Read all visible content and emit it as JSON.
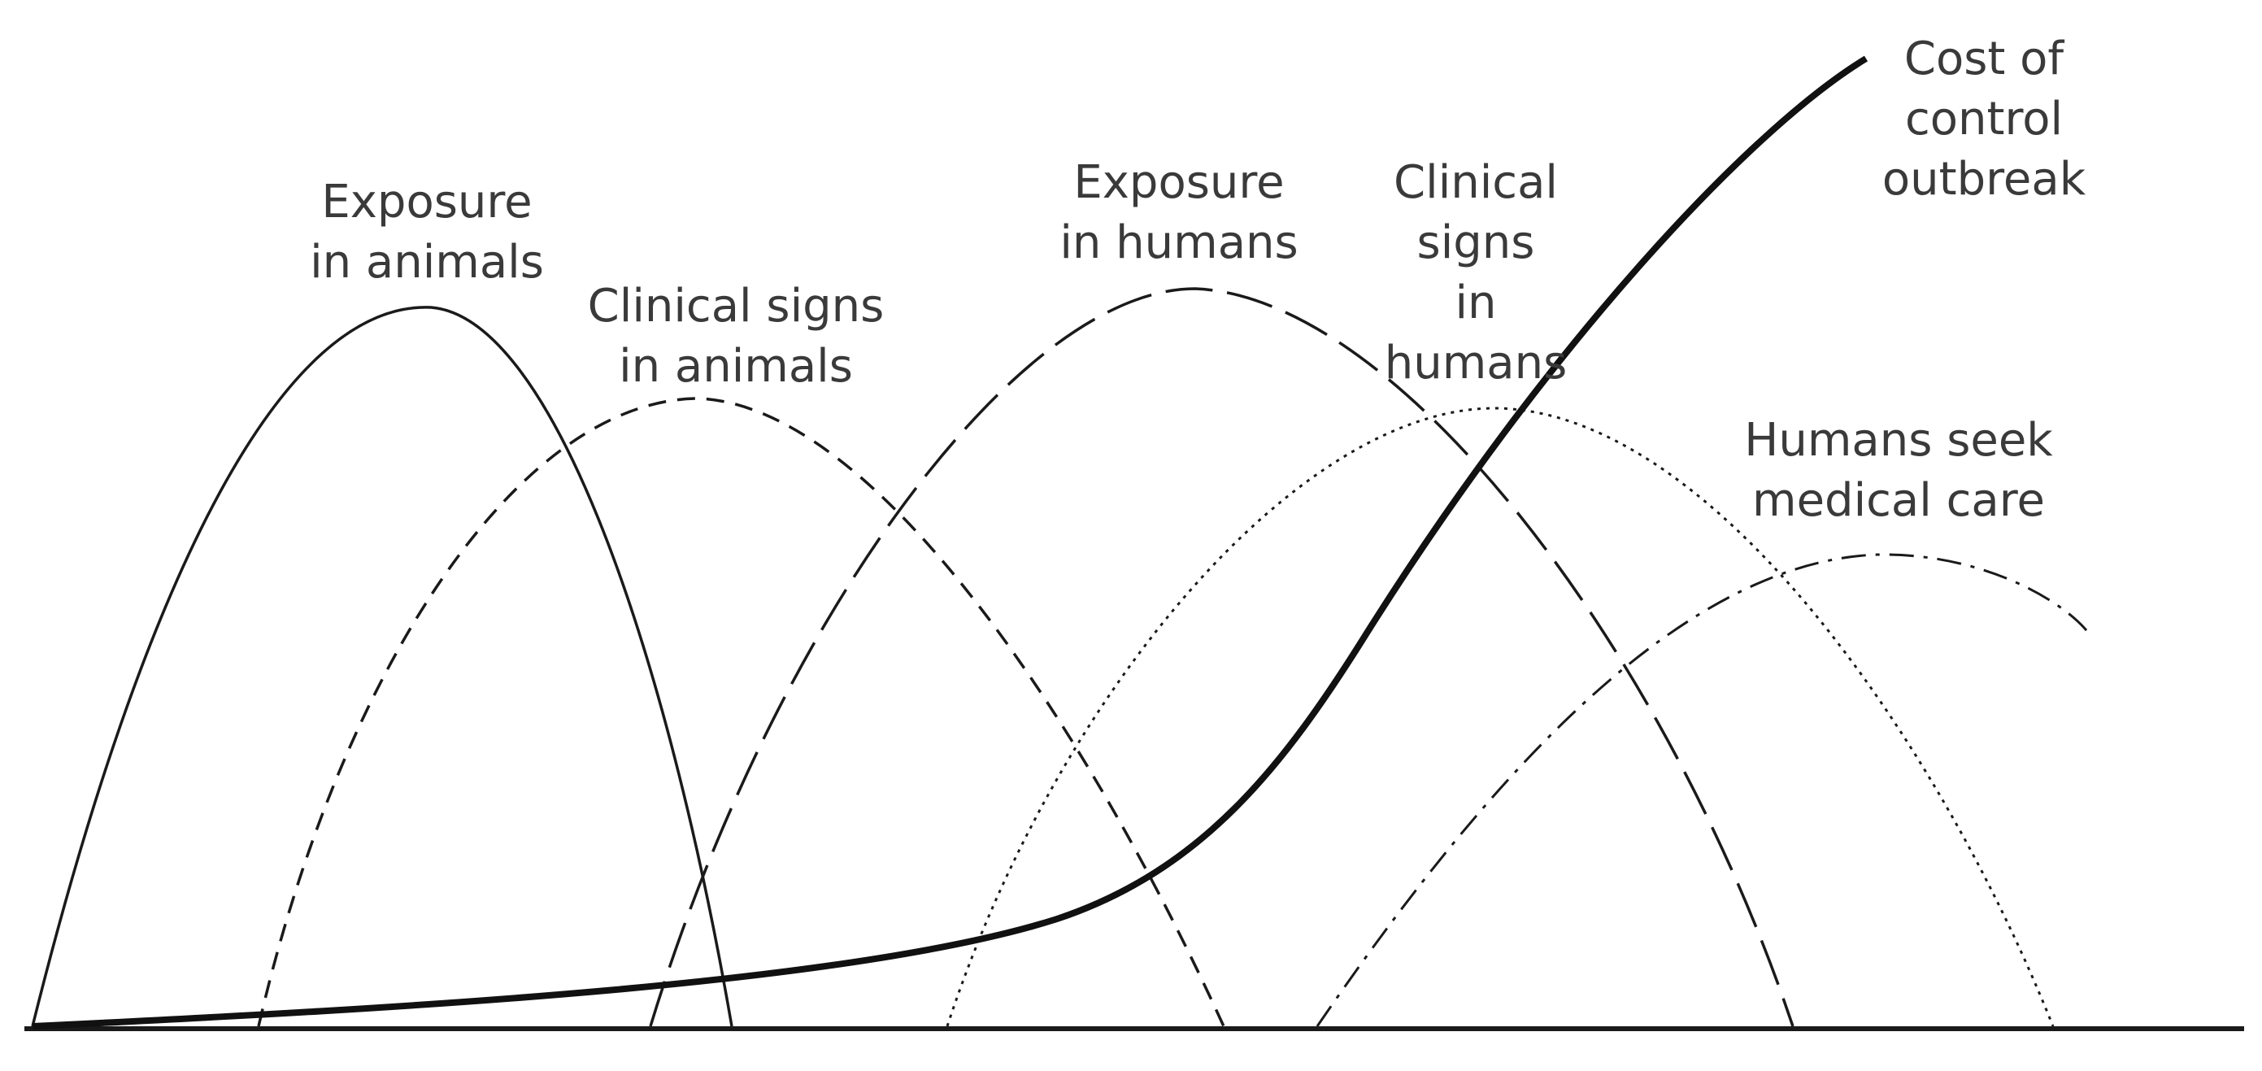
{
  "labels": {
    "exposure_animals": [
      "Exposure",
      "in animals"
    ],
    "clinical_animals": [
      "Clinical signs",
      "in animals"
    ],
    "exposure_humans": [
      "Exposure",
      "in humans"
    ],
    "clinical_humans": [
      "Clinical",
      "signs",
      "in",
      "humans"
    ],
    "seek_care": [
      "Humans seek",
      "medical care"
    ],
    "cost": [
      "Cost of",
      "control",
      "outbreak"
    ]
  },
  "colors": {
    "background": "#ffffff",
    "stroke": "#1a1a1a",
    "text": "#3a3a3a"
  },
  "curves": [
    {
      "key": "exposure_animals",
      "style": "solid"
    },
    {
      "key": "clinical_animals",
      "style": "short-dash"
    },
    {
      "key": "exposure_humans",
      "style": "long-dash"
    },
    {
      "key": "clinical_humans",
      "style": "dotted"
    },
    {
      "key": "seek_care",
      "style": "dash-dot"
    },
    {
      "key": "cost",
      "style": "thick-solid"
    }
  ]
}
